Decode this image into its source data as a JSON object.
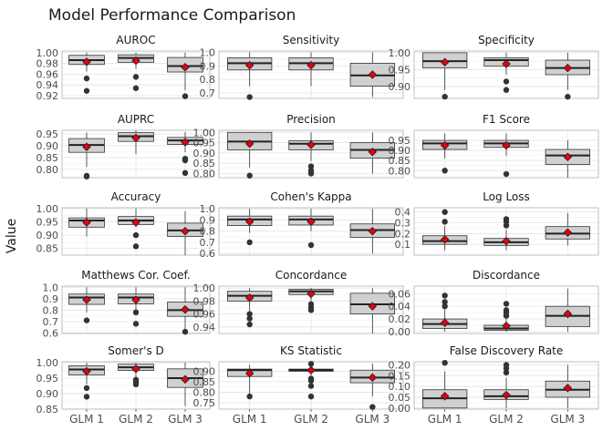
{
  "title": "Model Performance Comparison",
  "ylabel": "Value",
  "categories": [
    "GLM 1",
    "GLM 2",
    "GLM 3"
  ],
  "colors": {
    "box_fill": "#d0d0d0",
    "box_stroke": "#333333",
    "median": "#222222",
    "mean_point": "#e8000b",
    "outlier": "#333333",
    "grid": "#e6e6e6",
    "panel_border": "#b3b3b3"
  },
  "chart_data": [
    {
      "type": "box",
      "title": "AUROC",
      "ylim": [
        0.915,
        1.003
      ],
      "ticks": [
        0.92,
        0.94,
        0.96,
        0.98,
        1.0
      ],
      "tick_labels": [
        "0.92",
        "0.94",
        "0.96",
        "0.98",
        "1.00"
      ],
      "boxes": [
        {
          "q1": 0.978,
          "median": 0.986,
          "q3": 0.995,
          "low": 0.965,
          "high": 1.0,
          "mean": 0.983,
          "outliers": [
            0.952,
            0.929
          ]
        },
        {
          "q1": 0.982,
          "median": 0.99,
          "q3": 0.996,
          "low": 0.97,
          "high": 1.0,
          "mean": 0.985,
          "outliers": [
            0.955,
            0.934
          ]
        },
        {
          "q1": 0.964,
          "median": 0.975,
          "q3": 0.991,
          "low": 0.93,
          "high": 1.0,
          "mean": 0.973,
          "outliers": [
            0.919
          ]
        }
      ]
    },
    {
      "type": "box",
      "title": "Sensitivity",
      "ylim": [
        0.66,
        1.01
      ],
      "ticks": [
        0.7,
        0.8,
        0.9,
        1.0
      ],
      "tick_labels": [
        "0.7",
        "0.8",
        "0.9",
        "1.0"
      ],
      "boxes": [
        {
          "q1": 0.87,
          "median": 0.92,
          "q3": 0.96,
          "low": 0.75,
          "high": 1.0,
          "mean": 0.905,
          "outliers": [
            0.67
          ]
        },
        {
          "q1": 0.87,
          "median": 0.92,
          "q3": 0.96,
          "low": 0.75,
          "high": 1.0,
          "mean": 0.905,
          "outliers": []
        },
        {
          "q1": 0.75,
          "median": 0.83,
          "q3": 0.92,
          "low": 0.67,
          "high": 1.0,
          "mean": 0.835,
          "outliers": []
        }
      ]
    },
    {
      "type": "box",
      "title": "Specificity",
      "ylim": [
        0.865,
        1.005
      ],
      "ticks": [
        0.9,
        0.95,
        1.0
      ],
      "tick_labels": [
        "0.90",
        "0.95",
        "1.00"
      ],
      "boxes": [
        {
          "q1": 0.955,
          "median": 0.975,
          "q3": 1.0,
          "low": 0.89,
          "high": 1.0,
          "mean": 0.972,
          "outliers": [
            0.87
          ]
        },
        {
          "q1": 0.96,
          "median": 0.978,
          "q3": 0.985,
          "low": 0.935,
          "high": 1.0,
          "mean": 0.967,
          "outliers": [
            0.915,
            0.89
          ]
        },
        {
          "q1": 0.935,
          "median": 0.955,
          "q3": 0.978,
          "low": 0.89,
          "high": 1.0,
          "mean": 0.955,
          "outliers": [
            0.87
          ]
        }
      ]
    },
    {
      "type": "box",
      "title": "AUPRC",
      "ylim": [
        0.765,
        0.965
      ],
      "ticks": [
        0.8,
        0.85,
        0.9,
        0.95
      ],
      "tick_labels": [
        "0.80",
        "0.85",
        "0.90",
        "0.95"
      ],
      "boxes": [
        {
          "q1": 0.872,
          "median": 0.903,
          "q3": 0.93,
          "low": 0.81,
          "high": 0.955,
          "mean": 0.895,
          "outliers": [
            0.773,
            0.77
          ]
        },
        {
          "q1": 0.918,
          "median": 0.94,
          "q3": 0.955,
          "low": 0.865,
          "high": 0.965,
          "mean": 0.933,
          "outliers": []
        },
        {
          "q1": 0.905,
          "median": 0.922,
          "q3": 0.935,
          "low": 0.872,
          "high": 0.958,
          "mean": 0.915,
          "outliers": [
            0.845,
            0.838,
            0.785
          ]
        }
      ]
    },
    {
      "type": "box",
      "title": "Precision",
      "ylim": [
        0.78,
        1.01
      ],
      "ticks": [
        0.8,
        0.85,
        0.9,
        0.95,
        1.0
      ],
      "tick_labels": [
        "0.80",
        "0.85",
        "0.90",
        "0.95",
        "1.00"
      ],
      "boxes": [
        {
          "q1": 0.915,
          "median": 0.955,
          "q3": 1.0,
          "low": 0.83,
          "high": 1.0,
          "mean": 0.945,
          "outliers": [
            0.79
          ]
        },
        {
          "q1": 0.915,
          "median": 0.945,
          "q3": 0.96,
          "low": 0.86,
          "high": 1.0,
          "mean": 0.94,
          "outliers": [
            0.835,
            0.815,
            0.8
          ]
        },
        {
          "q1": 0.875,
          "median": 0.915,
          "q3": 0.95,
          "low": 0.8,
          "high": 1.0,
          "mean": 0.905,
          "outliers": []
        }
      ]
    },
    {
      "type": "box",
      "title": "F1 Score",
      "ylim": [
        0.765,
        1.0
      ],
      "ticks": [
        0.8,
        0.85,
        0.9,
        0.95
      ],
      "tick_labels": [
        "0.80",
        "0.85",
        "0.90",
        "0.95"
      ],
      "boxes": [
        {
          "q1": 0.905,
          "median": 0.935,
          "q3": 0.95,
          "low": 0.86,
          "high": 0.985,
          "mean": 0.925,
          "outliers": [
            0.8
          ]
        },
        {
          "q1": 0.915,
          "median": 0.935,
          "q3": 0.95,
          "low": 0.875,
          "high": 0.985,
          "mean": 0.925,
          "outliers": [
            0.783
          ]
        },
        {
          "q1": 0.83,
          "median": 0.875,
          "q3": 0.905,
          "low": 0.765,
          "high": 0.95,
          "mean": 0.868,
          "outliers": []
        }
      ]
    },
    {
      "type": "box",
      "title": "Accuracy",
      "ylim": [
        0.825,
        1.003
      ],
      "ticks": [
        0.85,
        0.9,
        0.95,
        1.0
      ],
      "tick_labels": [
        "0.85",
        "0.90",
        "0.95",
        "1.00"
      ],
      "boxes": [
        {
          "q1": 0.93,
          "median": 0.955,
          "q3": 0.965,
          "low": 0.895,
          "high": 1.0,
          "mean": 0.948,
          "outliers": []
        },
        {
          "q1": 0.94,
          "median": 0.955,
          "q3": 0.97,
          "low": 0.93,
          "high": 1.0,
          "mean": 0.948,
          "outliers": [
            0.9,
            0.858
          ]
        },
        {
          "q1": 0.895,
          "median": 0.918,
          "q3": 0.945,
          "low": 0.825,
          "high": 0.99,
          "mean": 0.915,
          "outliers": []
        }
      ]
    },
    {
      "type": "box",
      "title": "Cohen's Kappa",
      "ylim": [
        0.585,
        1.01
      ],
      "ticks": [
        0.6,
        0.7,
        0.8,
        0.9,
        1.0
      ],
      "tick_labels": [
        "0.6",
        "0.7",
        "0.8",
        "0.9",
        "1.0"
      ],
      "boxes": [
        {
          "q1": 0.85,
          "median": 0.905,
          "q3": 0.935,
          "low": 0.785,
          "high": 1.0,
          "mean": 0.885,
          "outliers": [
            0.7
          ]
        },
        {
          "q1": 0.855,
          "median": 0.905,
          "q3": 0.935,
          "low": 0.8,
          "high": 1.0,
          "mean": 0.885,
          "outliers": [
            0.675
          ]
        },
        {
          "q1": 0.745,
          "median": 0.81,
          "q3": 0.865,
          "low": 0.6,
          "high": 1.0,
          "mean": 0.8,
          "outliers": []
        }
      ]
    },
    {
      "type": "box",
      "title": "Log Loss",
      "ylim": [
        0.0,
        0.44
      ],
      "ticks": [
        0.1,
        0.2,
        0.3,
        0.4
      ],
      "tick_labels": [
        "0.1",
        "0.2",
        "0.3",
        "0.4"
      ],
      "boxes": [
        {
          "q1": 0.1,
          "median": 0.13,
          "q3": 0.18,
          "low": 0.045,
          "high": 0.27,
          "mean": 0.145,
          "outliers": [
            0.31,
            0.4
          ]
        },
        {
          "q1": 0.09,
          "median": 0.12,
          "q3": 0.155,
          "low": 0.045,
          "high": 0.235,
          "mean": 0.13,
          "outliers": [
            0.275,
            0.31,
            0.335
          ]
        },
        {
          "q1": 0.15,
          "median": 0.2,
          "q3": 0.265,
          "low": 0.09,
          "high": 0.39,
          "mean": 0.21,
          "outliers": []
        }
      ]
    },
    {
      "type": "box",
      "title": "Matthews Cor. Coef.",
      "ylim": [
        0.595,
        1.01
      ],
      "ticks": [
        0.6,
        0.7,
        0.8,
        0.9,
        1.0
      ],
      "tick_labels": [
        "0.6",
        "0.7",
        "0.8",
        "0.9",
        "1.0"
      ],
      "boxes": [
        {
          "q1": 0.85,
          "median": 0.91,
          "q3": 0.94,
          "low": 0.78,
          "high": 1.0,
          "mean": 0.89,
          "outliers": [
            0.71
          ]
        },
        {
          "q1": 0.855,
          "median": 0.91,
          "q3": 0.94,
          "low": 0.78,
          "high": 1.0,
          "mean": 0.89,
          "outliers": [
            0.78,
            0.68
          ]
        },
        {
          "q1": 0.745,
          "median": 0.8,
          "q3": 0.87,
          "low": 0.625,
          "high": 1.0,
          "mean": 0.805,
          "outliers": [
            0.61
          ]
        }
      ]
    },
    {
      "type": "box",
      "title": "Concordance",
      "ylim": [
        0.93,
        1.003
      ],
      "ticks": [
        0.94,
        0.96,
        0.98,
        1.0
      ],
      "tick_labels": [
        "0.94",
        "0.96",
        "0.98",
        "1.00"
      ],
      "boxes": [
        {
          "q1": 0.98,
          "median": 0.988,
          "q3": 0.995,
          "low": 0.965,
          "high": 1.0,
          "mean": 0.985,
          "outliers": [
            0.96,
            0.953,
            0.944
          ]
        },
        {
          "q1": 0.99,
          "median": 0.995,
          "q3": 0.998,
          "low": 0.978,
          "high": 1.0,
          "mean": 0.991,
          "outliers": [
            0.975,
            0.97,
            0.966
          ]
        },
        {
          "q1": 0.96,
          "median": 0.975,
          "q3": 0.992,
          "low": 0.93,
          "high": 1.0,
          "mean": 0.972,
          "outliers": []
        }
      ]
    },
    {
      "type": "box",
      "title": "Discordance",
      "ylim": [
        -0.003,
        0.072
      ],
      "ticks": [
        0.0,
        0.02,
        0.04,
        0.06
      ],
      "tick_labels": [
        "0.00",
        "0.02",
        "0.04",
        "0.06"
      ],
      "boxes": [
        {
          "q1": 0.005,
          "median": 0.012,
          "q3": 0.02,
          "low": 0.0,
          "high": 0.035,
          "mean": 0.014,
          "outliers": [
            0.04,
            0.047,
            0.057
          ]
        },
        {
          "q1": 0.002,
          "median": 0.005,
          "q3": 0.01,
          "low": 0.0,
          "high": 0.02,
          "mean": 0.009,
          "outliers": [
            0.025,
            0.03,
            0.034,
            0.044
          ]
        },
        {
          "q1": 0.008,
          "median": 0.025,
          "q3": 0.04,
          "low": 0.0,
          "high": 0.068,
          "mean": 0.028,
          "outliers": []
        }
      ]
    },
    {
      "type": "box",
      "title": "Somer's D",
      "ylim": [
        0.85,
        1.003
      ],
      "ticks": [
        0.85,
        0.9,
        0.95,
        1.0
      ],
      "tick_labels": [
        "0.85",
        "0.90",
        "0.95",
        "1.00"
      ],
      "boxes": [
        {
          "q1": 0.96,
          "median": 0.978,
          "q3": 0.99,
          "low": 0.93,
          "high": 1.0,
          "mean": 0.972,
          "outliers": [
            0.918,
            0.89
          ]
        },
        {
          "q1": 0.975,
          "median": 0.985,
          "q3": 0.995,
          "low": 0.955,
          "high": 1.0,
          "mean": 0.98,
          "outliers": [
            0.945,
            0.938,
            0.93
          ]
        },
        {
          "q1": 0.92,
          "median": 0.95,
          "q3": 0.98,
          "low": 0.86,
          "high": 1.0,
          "mean": 0.946,
          "outliers": []
        }
      ]
    },
    {
      "type": "box",
      "title": "KS Statistic",
      "ylim": [
        0.72,
        0.945
      ],
      "ticks": [
        0.75,
        0.8,
        0.85,
        0.9
      ],
      "tick_labels": [
        "0.75",
        "0.80",
        "0.85",
        "0.90"
      ],
      "boxes": [
        {
          "q1": 0.875,
          "median": 0.905,
          "q3": 0.91,
          "low": 0.79,
          "high": 0.93,
          "mean": 0.89,
          "outliers": [
            0.78
          ]
        },
        {
          "q1": 0.9,
          "median": 0.905,
          "q3": 0.91,
          "low": 0.88,
          "high": 0.925,
          "mean": 0.905,
          "outliers": [
            0.865,
            0.855,
            0.83,
            0.78,
            0.935
          ]
        },
        {
          "q1": 0.845,
          "median": 0.87,
          "q3": 0.905,
          "low": 0.78,
          "high": 0.935,
          "mean": 0.87,
          "outliers": [
            0.73
          ]
        }
      ]
    },
    {
      "type": "box",
      "title": "False Discovery Rate",
      "ylim": [
        -0.005,
        0.215
      ],
      "ticks": [
        0.0,
        0.05,
        0.1,
        0.15,
        0.2
      ],
      "tick_labels": [
        "0.00",
        "0.05",
        "0.10",
        "0.15",
        "0.20"
      ],
      "boxes": [
        {
          "q1": 0.0,
          "median": 0.045,
          "q3": 0.085,
          "low": 0.0,
          "high": 0.17,
          "mean": 0.055,
          "outliers": [
            0.21
          ]
        },
        {
          "q1": 0.04,
          "median": 0.055,
          "q3": 0.085,
          "low": 0.0,
          "high": 0.14,
          "mean": 0.06,
          "outliers": [
            0.165,
            0.185,
            0.2
          ]
        },
        {
          "q1": 0.05,
          "median": 0.085,
          "q3": 0.125,
          "low": 0.0,
          "high": 0.2,
          "mean": 0.093,
          "outliers": []
        }
      ]
    }
  ]
}
